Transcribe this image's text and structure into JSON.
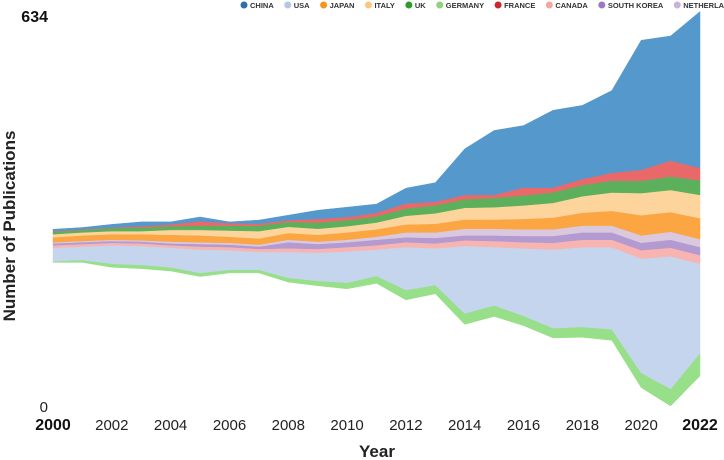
{
  "chart_data": {
    "type": "area",
    "stacking": "streamgraph",
    "title": "",
    "xlabel": "Year",
    "ylabel": "Number of Publications",
    "ylim": [
      0,
      634
    ],
    "ytick_labels": [
      "0",
      "634"
    ],
    "legend_position": "top-right",
    "years": [
      2000,
      2001,
      2002,
      2003,
      2004,
      2005,
      2006,
      2007,
      2008,
      2009,
      2010,
      2011,
      2012,
      2013,
      2014,
      2015,
      2016,
      2017,
      2018,
      2019,
      2020,
      2021,
      2022
    ],
    "xtick_labels": [
      "2000",
      "2002",
      "2004",
      "2006",
      "2008",
      "2010",
      "2012",
      "2014",
      "2016",
      "2018",
      "2020",
      "2022"
    ],
    "first_tick_label": "2000",
    "last_tick_label": "2022",
    "baseline": [
      234,
      234,
      226,
      224,
      220,
      211,
      217,
      217,
      202,
      196,
      191,
      200,
      173,
      183,
      133,
      146,
      131,
      111,
      112,
      107,
      30,
      0,
      49
    ],
    "series": [
      {
        "name": "GERMANY",
        "color": "#98df8a",
        "values": [
          2,
          4,
          6,
          6,
          6,
          6,
          5,
          5,
          7,
          8,
          10,
          12,
          16,
          14,
          18,
          18,
          16,
          16,
          17,
          18,
          24,
          28,
          37
        ]
      },
      {
        "name": "USA",
        "color": "#c5d5ee",
        "values": [
          22,
          22,
          30,
          31,
          32,
          38,
          32,
          29,
          42,
          46,
          51,
          43,
          70,
          60,
          110,
          95,
          110,
          128,
          130,
          134,
          186,
          216,
          146
        ]
      },
      {
        "name": "CANADA",
        "color": "#f7b4b0",
        "values": [
          4,
          4,
          4,
          4,
          4,
          5,
          5,
          5,
          6,
          6,
          7,
          7,
          8,
          8,
          9,
          10,
          10,
          11,
          12,
          12,
          14,
          14,
          14
        ]
      },
      {
        "name": "SOUTH KOREA",
        "color": "#b39ad0",
        "values": [
          3,
          3,
          3,
          3,
          3,
          4,
          4,
          4,
          10,
          8,
          8,
          9,
          8,
          9,
          8,
          9,
          10,
          11,
          12,
          12,
          12,
          13,
          13
        ]
      },
      {
        "name": "NETHERLANDS",
        "color": "#d9c8de",
        "values": [
          2,
          2,
          2,
          2,
          3,
          3,
          3,
          3,
          4,
          4,
          4,
          5,
          8,
          9,
          11,
          11,
          11,
          11,
          11,
          11,
          12,
          13,
          13
        ]
      },
      {
        "name": "JAPAN",
        "color": "#fba543",
        "values": [
          8,
          9,
          9,
          10,
          11,
          11,
          10,
          10,
          11,
          11,
          12,
          12,
          13,
          14,
          15,
          15,
          17,
          19,
          21,
          24,
          33,
          32,
          34
        ]
      },
      {
        "name": "ITALY",
        "color": "#fdd49c",
        "values": [
          5,
          5,
          5,
          5,
          8,
          9,
          10,
          12,
          10,
          10,
          10,
          11,
          14,
          17,
          19,
          20,
          22,
          24,
          27,
          30,
          36,
          36,
          38
        ]
      },
      {
        "name": "UK",
        "color": "#5cb05c",
        "values": [
          4,
          4,
          5,
          6,
          6,
          7,
          8,
          9,
          8,
          10,
          10,
          10,
          12,
          13,
          14,
          15,
          16,
          17,
          18,
          19,
          20,
          22,
          24
        ]
      },
      {
        "name": "FRANCE",
        "color": "#e9696a",
        "values": [
          1,
          1,
          1,
          2,
          3,
          7,
          4,
          3,
          3,
          6,
          5,
          6,
          8,
          6,
          7,
          5,
          13,
          8,
          10,
          13,
          18,
          26,
          20
        ]
      },
      {
        "name": "CHINA",
        "color": "#5498cc",
        "values": [
          3,
          3,
          5,
          7,
          4,
          7,
          2,
          6,
          8,
          14,
          16,
          14,
          25,
          31,
          75,
          105,
          101,
          126,
          120,
          134,
          211,
          203,
          255
        ]
      }
    ],
    "legend": [
      {
        "name": "CHINA",
        "color": "#2e6db0"
      },
      {
        "name": "USA",
        "color": "#b3c8e8"
      },
      {
        "name": "JAPAN",
        "color": "#f7941d"
      },
      {
        "name": "ITALY",
        "color": "#fdc680"
      },
      {
        "name": "UK",
        "color": "#2a9d2a"
      },
      {
        "name": "GERMANY",
        "color": "#8fd180"
      },
      {
        "name": "FRANCE",
        "color": "#c9282d"
      },
      {
        "name": "CANADA",
        "color": "#f4a6a1"
      },
      {
        "name": "SOUTH KOREA",
        "color": "#9b77c4"
      },
      {
        "name": "NETHERLANDS",
        "color": "#c9b3d6"
      }
    ]
  }
}
